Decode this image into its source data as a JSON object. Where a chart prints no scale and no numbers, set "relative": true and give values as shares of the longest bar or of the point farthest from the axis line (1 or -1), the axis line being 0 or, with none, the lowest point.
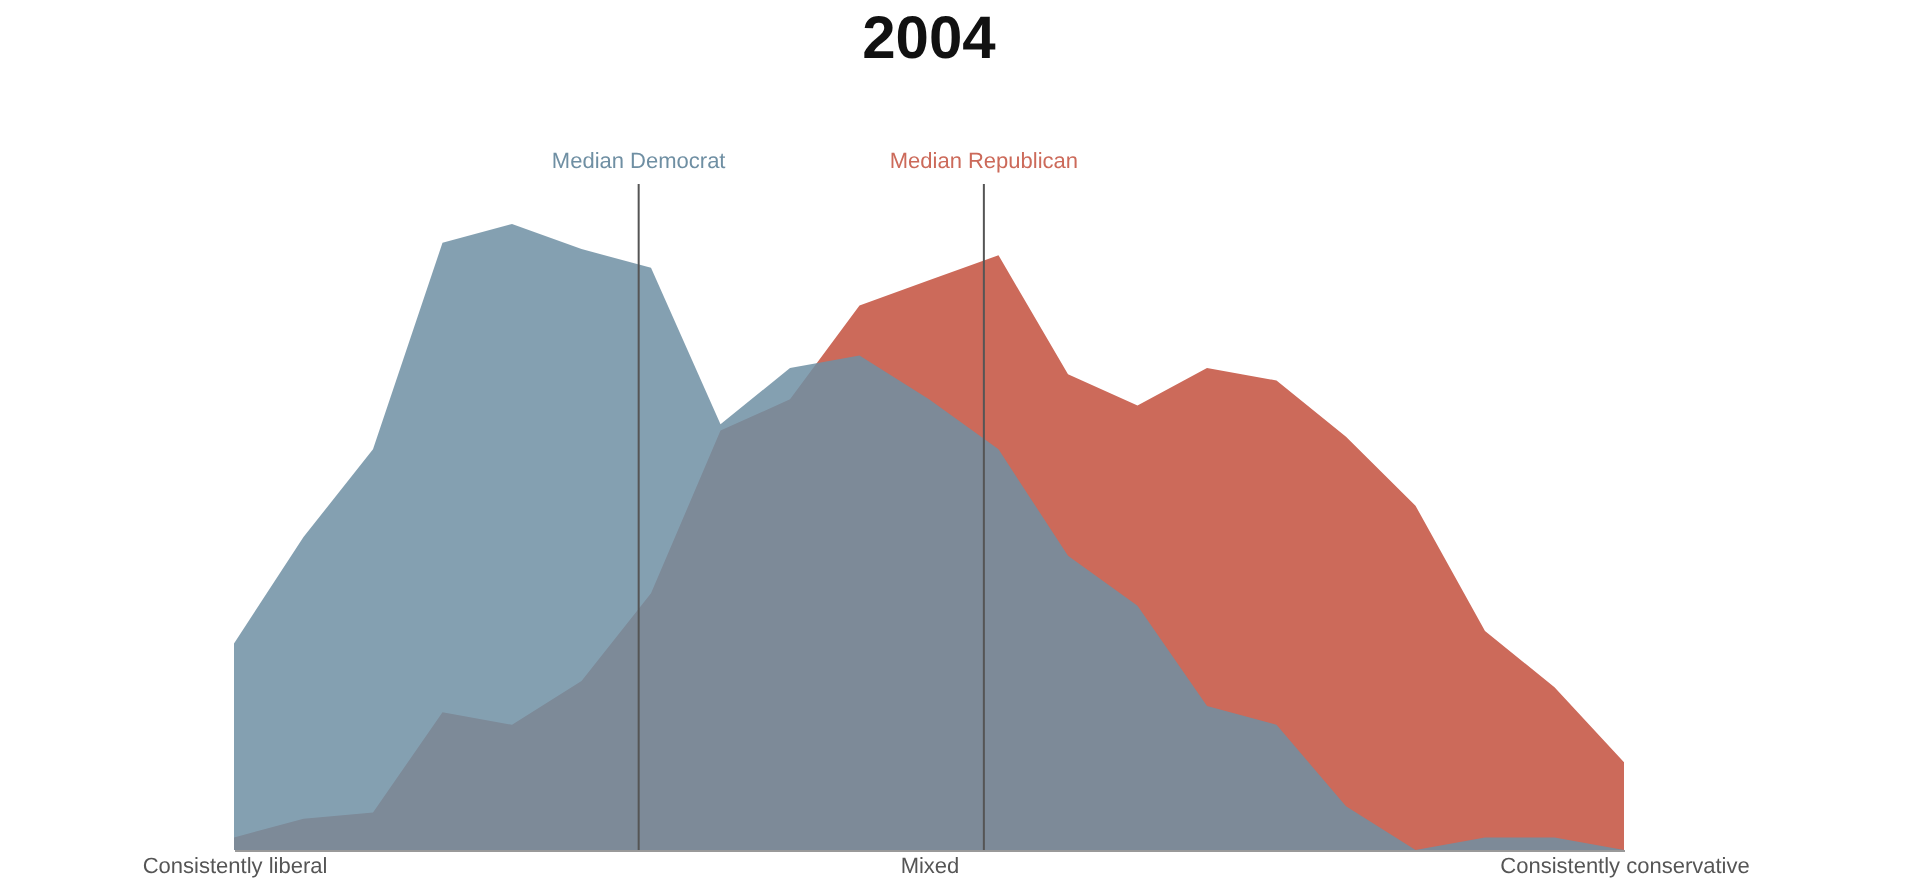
{
  "chart_data": {
    "type": "area",
    "title": "2004",
    "relative": true,
    "categories": [
      "Consistently liberal",
      null,
      null,
      null,
      null,
      null,
      null,
      null,
      null,
      null,
      "Mixed",
      null,
      null,
      null,
      null,
      null,
      null,
      null,
      null,
      null,
      "Consistently conservative"
    ],
    "series": [
      {
        "color": "#cc6a5a",
        "values": [
          0.02,
          0.05,
          0.06,
          0.22,
          0.2,
          0.27,
          0.41,
          0.67,
          0.72,
          0.87,
          0.91,
          0.95,
          0.76,
          0.71,
          0.77,
          0.75,
          0.66,
          0.55,
          0.35,
          0.26,
          0.14
        ]
      },
      {
        "color": "#6f8fa3",
        "values": [
          0.33,
          0.5,
          0.64,
          0.97,
          1.0,
          0.96,
          0.93,
          0.68,
          0.77,
          0.79,
          0.72,
          0.64,
          0.47,
          0.39,
          0.23,
          0.2,
          0.07,
          0.0,
          0.02,
          0.02,
          0.0
        ]
      }
    ],
    "annotations": [
      "Median Republican",
      "Median Democrat"
    ],
    "grid": false
  }
}
